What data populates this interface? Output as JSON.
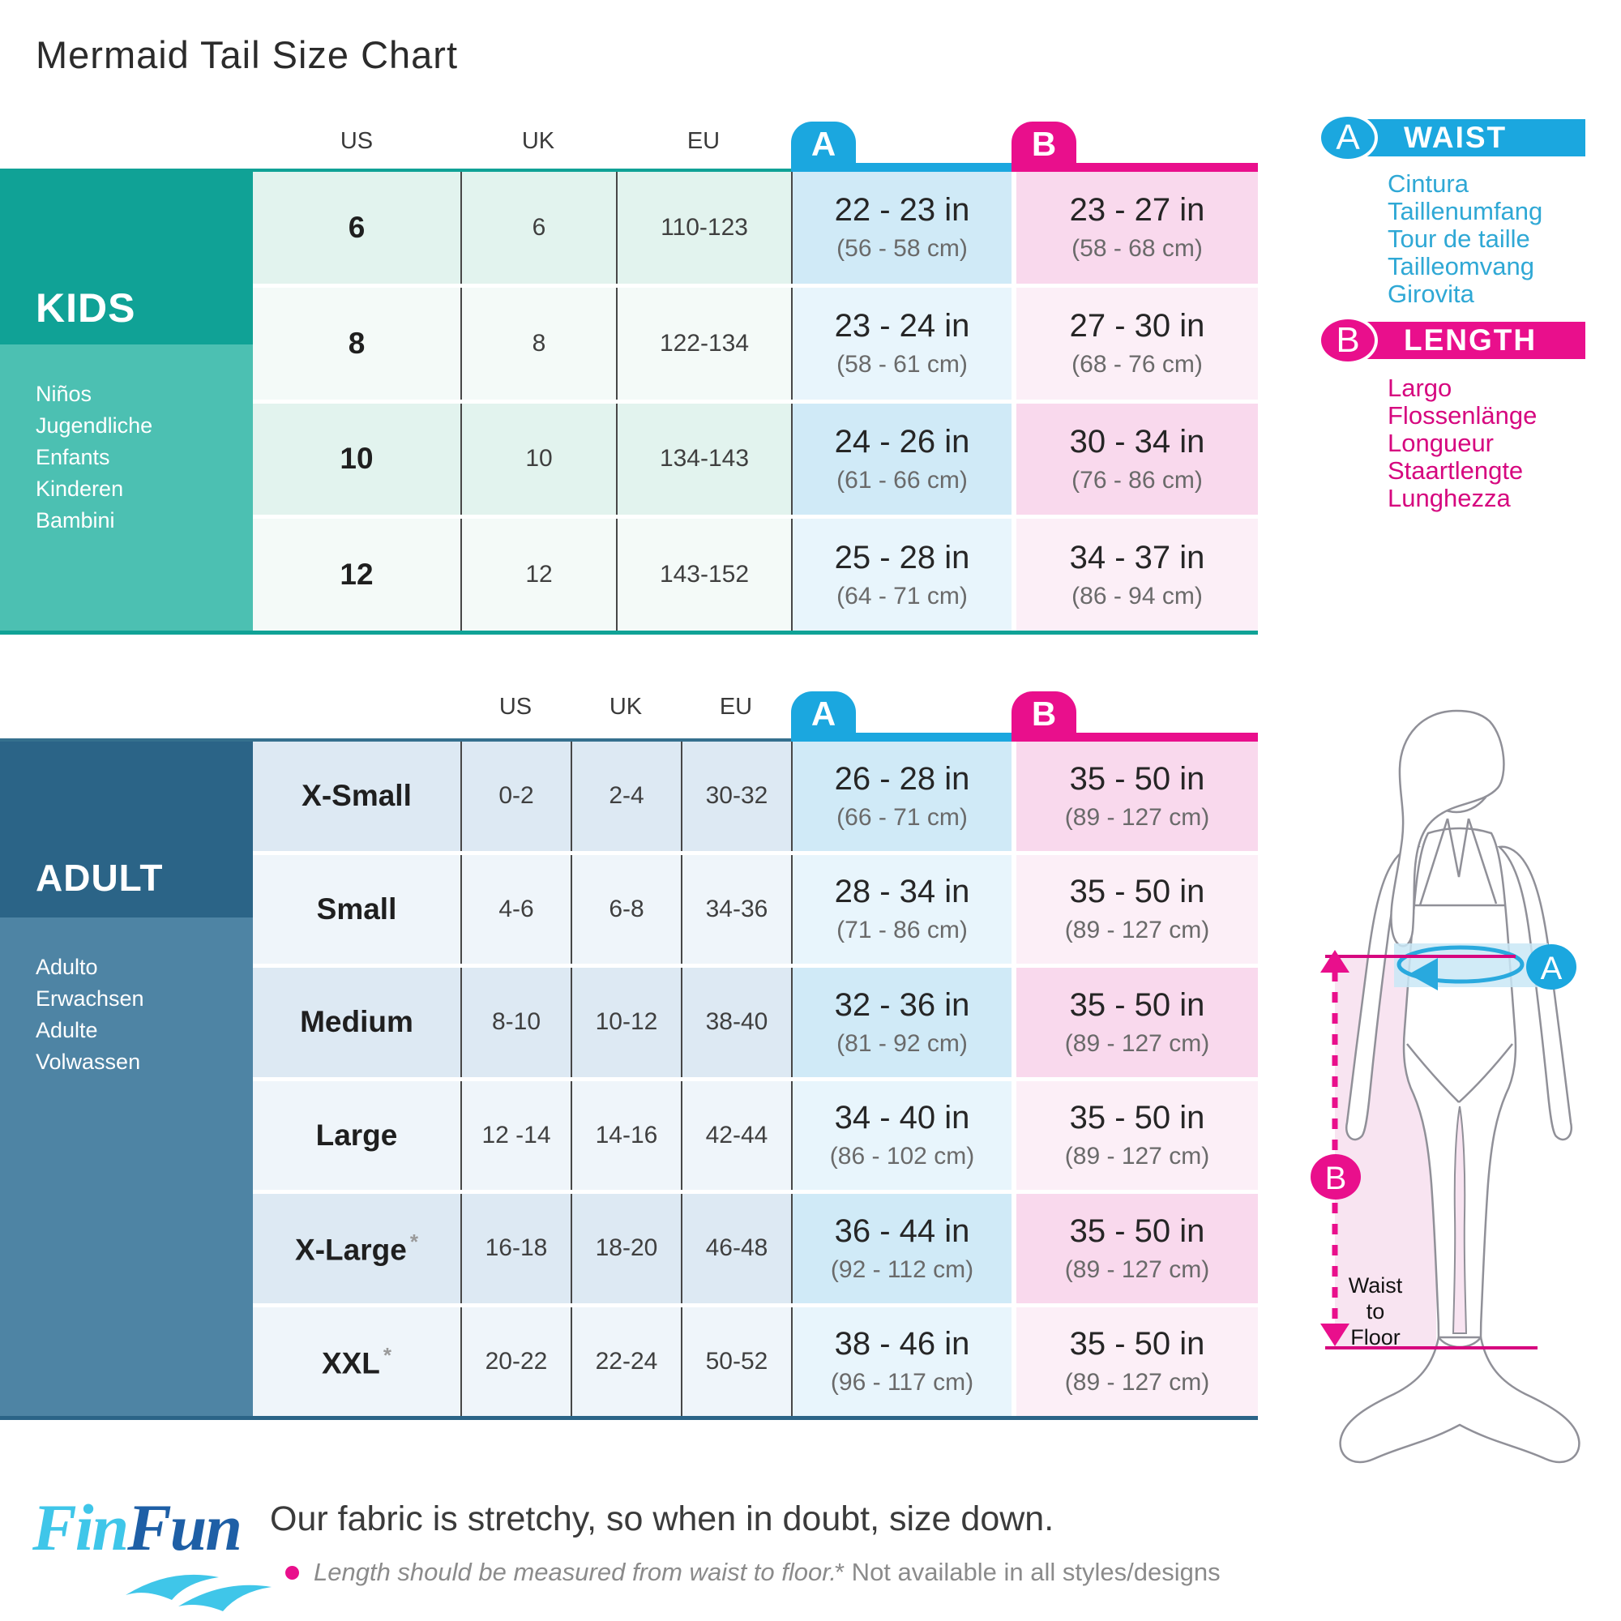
{
  "title": "Mermaid Tail Size Chart",
  "columns": {
    "us": "US",
    "uk": "UK",
    "eu": "EU"
  },
  "kids": {
    "label": "KIDS",
    "translations": [
      "Niños",
      "Jugendliche",
      "Enfants",
      "Kinderen",
      "Bambini"
    ],
    "rows": [
      {
        "us": "6",
        "uk": "6",
        "eu": "110-123",
        "waist_in": "22 - 23 in",
        "waist_cm": "(56 - 58 cm)",
        "length_in": "23 - 27 in",
        "length_cm": "(58 - 68 cm)"
      },
      {
        "us": "8",
        "uk": "8",
        "eu": "122-134",
        "waist_in": "23 - 24 in",
        "waist_cm": "(58 - 61 cm)",
        "length_in": "27 - 30 in",
        "length_cm": "(68 - 76 cm)"
      },
      {
        "us": "10",
        "uk": "10",
        "eu": "134-143",
        "waist_in": "24 - 26 in",
        "waist_cm": "(61 - 66 cm)",
        "length_in": "30 - 34 in",
        "length_cm": "(76 - 86 cm)"
      },
      {
        "us": "12",
        "uk": "12",
        "eu": "143-152",
        "waist_in": "25 - 28 in",
        "waist_cm": "(64 - 71 cm)",
        "length_in": "34 - 37 in",
        "length_cm": "(86 - 94 cm)"
      }
    ]
  },
  "adult": {
    "label": "ADULT",
    "translations": [
      "Adulto",
      "Erwachsen",
      "Adulte",
      "Volwassen"
    ],
    "rows": [
      {
        "size": "X-Small",
        "asterisk": false,
        "us": "0-2",
        "uk": "2-4",
        "eu": "30-32",
        "waist_in": "26 - 28 in",
        "waist_cm": "(66 - 71 cm)",
        "length_in": "35 - 50 in",
        "length_cm": "(89 - 127 cm)"
      },
      {
        "size": "Small",
        "asterisk": false,
        "us": "4-6",
        "uk": "6-8",
        "eu": "34-36",
        "waist_in": "28 - 34 in",
        "waist_cm": "(71 - 86 cm)",
        "length_in": "35 - 50 in",
        "length_cm": "(89 - 127 cm)"
      },
      {
        "size": "Medium",
        "asterisk": false,
        "us": "8-10",
        "uk": "10-12",
        "eu": "38-40",
        "waist_in": "32 - 36 in",
        "waist_cm": "(81 - 92 cm)",
        "length_in": "35 - 50 in",
        "length_cm": "(89 - 127 cm)"
      },
      {
        "size": "Large",
        "asterisk": false,
        "us": "12 -14",
        "uk": "14-16",
        "eu": "42-44",
        "waist_in": "34 - 40 in",
        "waist_cm": "(86 - 102 cm)",
        "length_in": "35 - 50 in",
        "length_cm": "(89 - 127 cm)"
      },
      {
        "size": "X-Large",
        "asterisk": true,
        "us": "16-18",
        "uk": "18-20",
        "eu": "46-48",
        "waist_in": "36 - 44 in",
        "waist_cm": "(92 - 112 cm)",
        "length_in": "35 - 50 in",
        "length_cm": "(89 - 127 cm)"
      },
      {
        "size": "XXL",
        "asterisk": true,
        "us": "20-22",
        "uk": "22-24",
        "eu": "50-52",
        "waist_in": "38 - 46 in",
        "waist_cm": "(96 - 117 cm)",
        "length_in": "35 - 50 in",
        "length_cm": "(89 - 127 cm)"
      }
    ]
  },
  "legend": {
    "waist": {
      "letter": "A",
      "label": "WAIST",
      "translations": [
        "Cintura",
        "Taillenumfang",
        "Tour de taille",
        "Tailleomvang",
        "Girovita"
      ]
    },
    "length": {
      "letter": "B",
      "label": "LENGTH",
      "translations": [
        "Largo",
        "Flossenlänge",
        "Longueur",
        "Staartlengte",
        "Lunghezza"
      ]
    }
  },
  "figure": {
    "waist_marker": "A",
    "length_marker": "B",
    "caption_lines": [
      "Waist",
      "to",
      "Floor"
    ]
  },
  "footer": {
    "brand": {
      "part1": "Fin",
      "part2": "Fun"
    },
    "note_main": "Our fabric is stretchy, so when in doubt, size down.",
    "note_bullet": "Length should be measured from waist to floor.",
    "note_asterisk": "* Not available in all styles/designs"
  },
  "colors": {
    "teal": "#10A296",
    "teal_light": "#4CC0B2",
    "navy": "#2B6487",
    "navy_light": "#4E84A4",
    "blue": "#1BA7DF",
    "blue_text": "#2FA8D5",
    "magenta": "#E90F8C",
    "magenta_deep": "#D6077F"
  }
}
